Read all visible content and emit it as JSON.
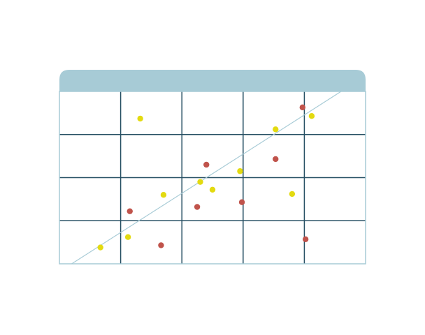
{
  "colors": {
    "header": "#a7cbd6",
    "frame": "#a7cbd6",
    "grid": "#264f63",
    "trendline": "#a7cbd6",
    "series_red": "#c0534b",
    "series_yellow": "#e3da10",
    "background": "#ffffff"
  },
  "chart_data": {
    "type": "scatter",
    "title": "",
    "xlabel": "",
    "ylabel": "",
    "xlim": [
      0,
      5
    ],
    "ylim": [
      0,
      4
    ],
    "grid": true,
    "legend": "none",
    "series": [
      {
        "color": "#e3da10",
        "points": [
          {
            "x": 0.67,
            "y": 0.38
          },
          {
            "x": 1.12,
            "y": 0.62
          },
          {
            "x": 1.32,
            "y": 3.37
          },
          {
            "x": 1.7,
            "y": 1.6
          },
          {
            "x": 2.3,
            "y": 1.9
          },
          {
            "x": 2.5,
            "y": 1.72
          },
          {
            "x": 2.95,
            "y": 2.15
          },
          {
            "x": 3.53,
            "y": 3.12
          },
          {
            "x": 3.8,
            "y": 1.62
          },
          {
            "x": 4.12,
            "y": 3.43
          }
        ]
      },
      {
        "color": "#c0534b",
        "points": [
          {
            "x": 1.15,
            "y": 1.22
          },
          {
            "x": 1.66,
            "y": 0.43
          },
          {
            "x": 2.25,
            "y": 1.32
          },
          {
            "x": 2.4,
            "y": 2.3
          },
          {
            "x": 2.98,
            "y": 1.43
          },
          {
            "x": 3.53,
            "y": 2.43
          },
          {
            "x": 3.97,
            "y": 3.63
          },
          {
            "x": 4.02,
            "y": 0.57
          }
        ]
      }
    ],
    "trendline": {
      "x": [
        0.2,
        4.6
      ],
      "y": [
        0,
        4.0
      ]
    }
  }
}
